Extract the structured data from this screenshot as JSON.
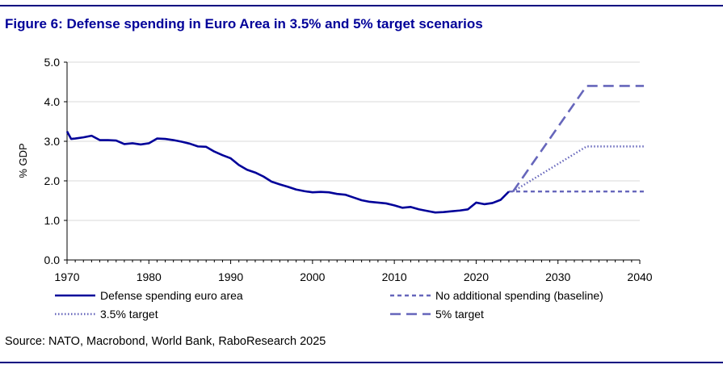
{
  "title": "Figure 6: Defense spending in Euro Area in 3.5% and 5% target scenarios",
  "source": "Source: NATO, Macrobond, World Bank, RaboResearch 2025",
  "colors": {
    "rule": "#000080",
    "title": "#000099",
    "series": "#000099",
    "scenario": "#6666BB",
    "grid": "#d9d9d9"
  },
  "chart_data": {
    "type": "line",
    "ylabel": "% GDP",
    "xlabel": "",
    "xlim": [
      1970,
      2040
    ],
    "ylim": [
      0,
      5
    ],
    "xticks": [
      1970,
      1980,
      1990,
      2000,
      2010,
      2020,
      2030,
      2040
    ],
    "xtick_labels": [
      "1970",
      "1980",
      "1990",
      "2000",
      "2010",
      "2020",
      "2030",
      "2040"
    ],
    "yticks": [
      0,
      1,
      2,
      3,
      4,
      5
    ],
    "ytick_labels": [
      "0.0",
      "1.0",
      "2.0",
      "3.0",
      "4.0",
      "5.0"
    ],
    "grid": "horizontal",
    "legend_position": "bottom",
    "series": [
      {
        "name": "Defense spending euro area",
        "style": "solid",
        "x": [
          1970,
          1970.5,
          1971,
          1972,
          1973,
          1974,
          1975,
          1976,
          1977,
          1978,
          1979,
          1980,
          1981,
          1982,
          1983,
          1984,
          1985,
          1986,
          1987,
          1988,
          1989,
          1990,
          1991,
          1992,
          1993,
          1994,
          1995,
          1996,
          1997,
          1998,
          1999,
          2000,
          2001,
          2002,
          2003,
          2004,
          2005,
          2006,
          2007,
          2008,
          2009,
          2010,
          2011,
          2012,
          2013,
          2014,
          2015,
          2016,
          2017,
          2018,
          2019,
          2020,
          2021,
          2022,
          2023,
          2024
        ],
        "y": [
          3.25,
          3.06,
          3.07,
          3.1,
          3.14,
          3.03,
          3.03,
          3.02,
          2.93,
          2.95,
          2.92,
          2.95,
          3.07,
          3.06,
          3.03,
          2.99,
          2.94,
          2.87,
          2.86,
          2.74,
          2.65,
          2.57,
          2.4,
          2.28,
          2.21,
          2.11,
          1.98,
          1.91,
          1.85,
          1.78,
          1.74,
          1.71,
          1.72,
          1.71,
          1.67,
          1.65,
          1.58,
          1.51,
          1.47,
          1.45,
          1.43,
          1.38,
          1.32,
          1.34,
          1.28,
          1.24,
          1.2,
          1.21,
          1.23,
          1.25,
          1.28,
          1.45,
          1.41,
          1.44,
          1.52,
          1.73
        ]
      },
      {
        "name": "No additional spending (baseline)",
        "style": "short-dash",
        "x": [
          2024,
          2025,
          2033.5,
          2040.5
        ],
        "y": [
          1.73,
          1.73,
          1.73,
          1.73
        ]
      },
      {
        "name": "3.5% target",
        "style": "dotted",
        "x": [
          2024.5,
          2033.5,
          2040.5
        ],
        "y": [
          1.73,
          2.87,
          2.87
        ]
      },
      {
        "name": "5% target",
        "style": "long-dash",
        "x": [
          2024.5,
          2033.5,
          2040.5
        ],
        "y": [
          1.73,
          4.4,
          4.4
        ]
      }
    ]
  }
}
